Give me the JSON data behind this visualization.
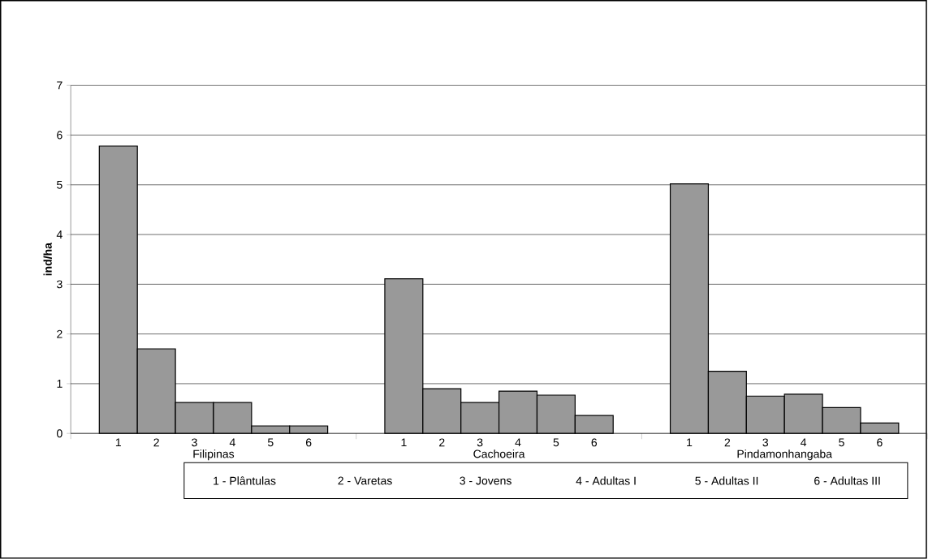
{
  "chart_data": {
    "type": "bar",
    "ylabel": "ind/ha",
    "categories": [
      "1",
      "2",
      "3",
      "4",
      "5",
      "6",
      "1",
      "2",
      "3",
      "4",
      "5",
      "6",
      "1",
      "2",
      "3",
      "4",
      "5",
      "6"
    ],
    "values": [
      5.78,
      1.7,
      0.62,
      0.62,
      0.15,
      0.15,
      3.11,
      0.9,
      0.62,
      0.85,
      0.77,
      0.36,
      5.02,
      1.25,
      0.75,
      0.79,
      0.52,
      0.21
    ],
    "color": "#999999",
    "ylim": [
      0,
      7
    ],
    "yticks": [
      0,
      1,
      2,
      3,
      4,
      5,
      6,
      7
    ],
    "grid": "y",
    "annotations": [
      "Filipinas",
      "Cachoeira",
      "Pindamonhangaba",
      "1 - Plântulas",
      "2 - Varetas",
      "3 - Jovens",
      "4 - Adultas I",
      "5 - Adultas II",
      "6 - Adultas III"
    ]
  }
}
